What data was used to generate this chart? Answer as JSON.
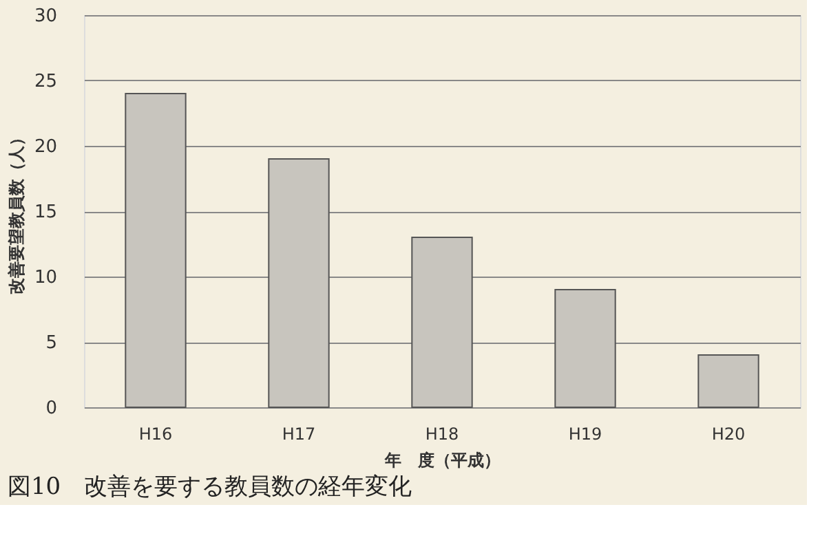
{
  "chart_data": {
    "type": "bar",
    "title": "図10　改善を要する教員数の経年変化",
    "xlabel": "年　度（平成）",
    "ylabel": "改善要望教員数（人）",
    "categories": [
      "H16",
      "H17",
      "H18",
      "H19",
      "H20"
    ],
    "values": [
      24,
      19,
      13,
      9,
      4
    ],
    "color": "#c8c5be",
    "ylim": [
      0,
      30
    ],
    "yticks": [
      0,
      5,
      10,
      15,
      20,
      25,
      30
    ],
    "grid": "y"
  }
}
